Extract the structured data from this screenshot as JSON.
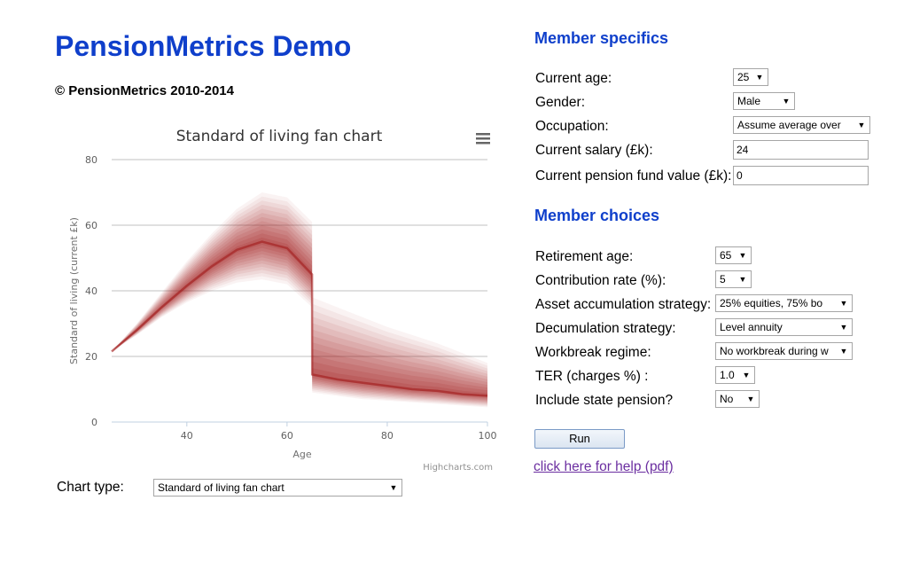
{
  "header": {
    "title": "PensionMetrics Demo",
    "copyright": "© PensionMetrics 2010-2014"
  },
  "chart_data": {
    "type": "area",
    "title": "Standard of living fan chart",
    "xlabel": "Age",
    "ylabel": "Standard of living (current £k)",
    "xlim": [
      25,
      100
    ],
    "ylim": [
      0,
      80
    ],
    "x_ticks": [
      40,
      60,
      80,
      100
    ],
    "y_ticks": [
      0,
      20,
      40,
      60,
      80
    ],
    "grid": true,
    "credits": "Highcharts.com",
    "series": [
      {
        "x": [
          25,
          30,
          35,
          40,
          45,
          50,
          55,
          60,
          65,
          65.01,
          70,
          75,
          80,
          85,
          90,
          95,
          100
        ],
        "median": [
          21.5,
          28,
          35,
          41.5,
          47.5,
          52.5,
          55,
          53,
          45,
          14.5,
          13,
          12,
          11,
          10,
          9.5,
          8.5,
          8
        ],
        "lower": [
          21.5,
          26.5,
          32,
          36.5,
          40,
          42.5,
          43.5,
          42,
          35,
          9,
          8,
          7,
          6.5,
          6,
          5.5,
          5,
          4.5
        ],
        "upper": [
          21.5,
          30,
          39.5,
          49,
          57.5,
          65,
          70,
          68.5,
          61,
          38,
          35,
          32,
          29,
          26.5,
          24,
          21,
          18
        ]
      }
    ],
    "colors": {
      "fan": "#a11a1a",
      "grid": "#c0c0c0",
      "axis": "#c0d0e0"
    }
  },
  "chart_menu": {
    "icon": "menu-icon"
  },
  "member_specifics": {
    "title": "Member specifics",
    "current_age_label": "Current age:",
    "current_age_value": "25",
    "gender_label": "Gender:",
    "gender_value": "Male",
    "occupation_label": "Occupation:",
    "occupation_value": "Assume average over",
    "salary_label": "Current salary (£k):",
    "salary_value": "24",
    "fund_label": "Current pension fund value (£k):",
    "fund_value": "0"
  },
  "member_choices": {
    "title": "Member choices",
    "retirement_age_label": "Retirement age:",
    "retirement_age_value": "65",
    "contribution_label": "Contribution rate (%):",
    "contribution_value": "5",
    "asset_label": "Asset accumulation strategy:",
    "asset_value": "25% equities, 75% bo",
    "decumulation_label": "Decumulation strategy:",
    "decumulation_value": "Level annuity",
    "workbreak_label": "Workbreak regime:",
    "workbreak_value": "No workbreak during w",
    "ter_label": "TER (charges %) :",
    "ter_value": "1.0",
    "state_pension_label": "Include state pension?",
    "state_pension_value": "No"
  },
  "actions": {
    "run_label": "Run",
    "help_link": "click here for help (pdf)"
  },
  "chart_type": {
    "label": "Chart type:",
    "value": "Standard of living fan chart"
  }
}
